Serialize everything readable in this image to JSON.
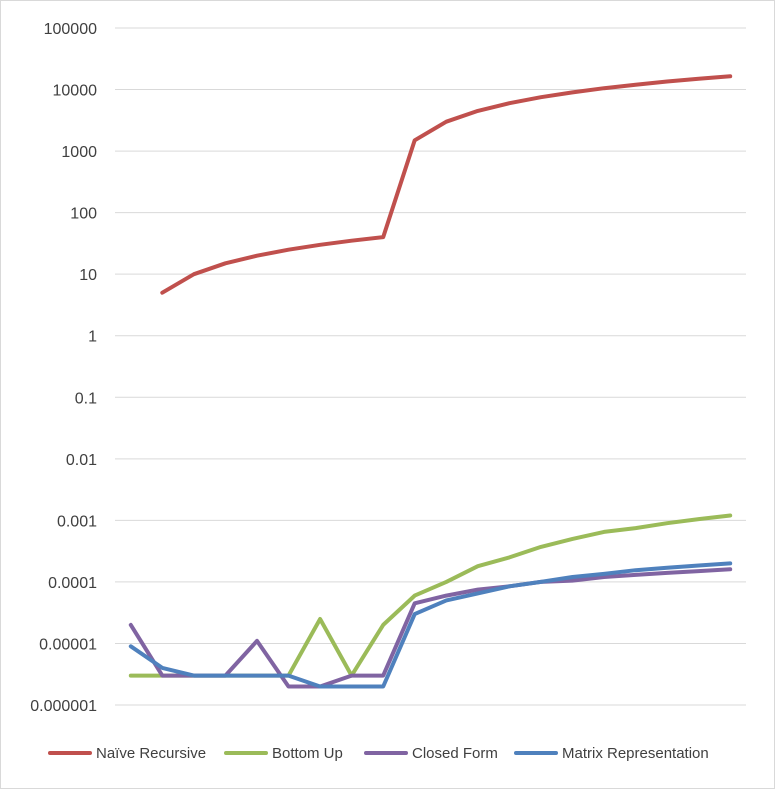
{
  "chart_data": {
    "type": "line",
    "title": "",
    "xlabel": "",
    "ylabel": "",
    "y_scale": "log",
    "ylim": [
      1e-06,
      100000
    ],
    "y_tick_labels": [
      "100000",
      "10000",
      "1000",
      "100",
      "10",
      "1",
      "0.1",
      "0.01",
      "0.001",
      "0.0001",
      "0.00001",
      "0.000001"
    ],
    "x_points": 20,
    "grid": "horizontal",
    "legend_position": "bottom",
    "series": [
      {
        "name": "Naïve Recursive",
        "color": "#c0504d",
        "values": [
          null,
          5,
          10,
          15,
          20,
          25,
          30,
          35,
          40,
          1500,
          3000,
          4500,
          6000,
          7500,
          9000,
          10500,
          12000,
          13500,
          15000,
          16500
        ]
      },
      {
        "name": "Bottom Up",
        "color": "#9bbb59",
        "values": [
          3e-06,
          3e-06,
          3e-06,
          3e-06,
          3e-06,
          3e-06,
          2.5e-05,
          3e-06,
          2e-05,
          6e-05,
          0.0001,
          0.00018,
          0.00025,
          0.00037,
          0.0005,
          0.00065,
          0.00075,
          0.0009,
          0.00105,
          0.0012
        ]
      },
      {
        "name": "Closed Form",
        "color": "#8064a2",
        "values": [
          2e-05,
          3e-06,
          3e-06,
          3e-06,
          1.1e-05,
          2e-06,
          2e-06,
          3e-06,
          3e-06,
          4.5e-05,
          6e-05,
          7.5e-05,
          8.5e-05,
          0.0001,
          0.000105,
          0.00012,
          0.00013,
          0.00014,
          0.00015,
          0.00016
        ]
      },
      {
        "name": "Matrix Representation",
        "color": "#4f81bd",
        "values": [
          9e-06,
          4e-06,
          3e-06,
          3e-06,
          3e-06,
          3e-06,
          2e-06,
          2e-06,
          2e-06,
          3e-05,
          5e-05,
          6.5e-05,
          8.5e-05,
          0.0001,
          0.00012,
          0.000135,
          0.000155,
          0.00017,
          0.000185,
          0.0002
        ]
      }
    ]
  }
}
